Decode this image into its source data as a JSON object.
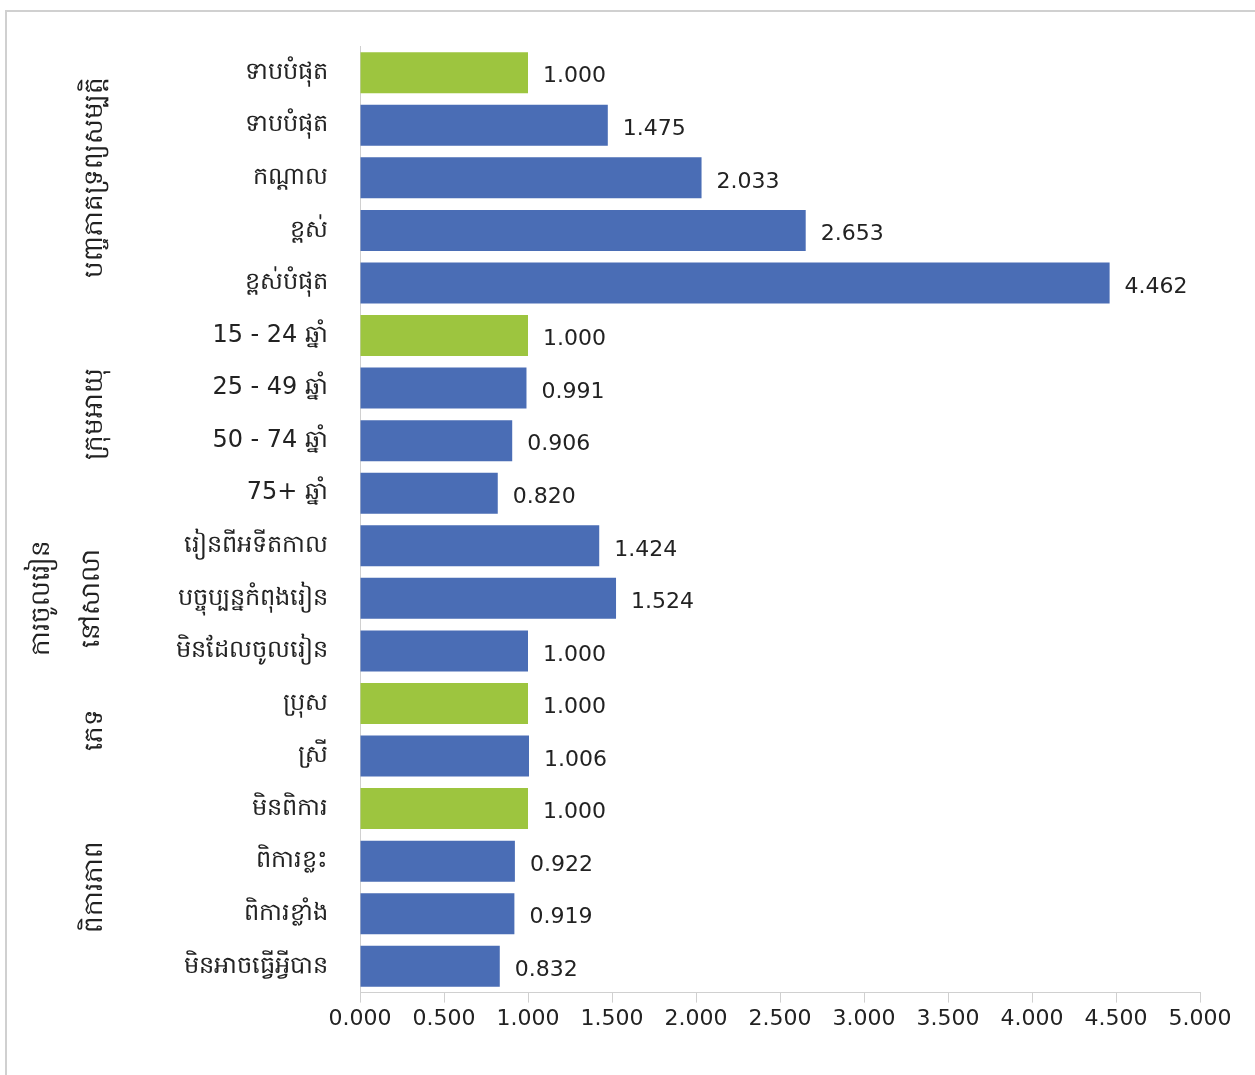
{
  "chart_data": {
    "type": "bar",
    "orientation": "horizontal",
    "categories": [
      "ទាបបំផុត",
      "ទាបបំផុត",
      "កណ្ដាល",
      "ខ្ពស់",
      "ខ្ពស់បំផុត",
      "15 - 24 ឆ្នាំ",
      "25 - 49 ឆ្នាំ",
      "50 - 74 ឆ្នាំ",
      "75+ ឆ្នាំ",
      "រៀនពីអទីតកាល",
      "បច្ចុប្បន្នកំពុងរៀន",
      "មិនដែលចូលរៀន",
      "ប្រុស",
      "ស្រី",
      "មិនពិការ",
      "ពិការខ្លះ",
      "ពិការខ្លាំង",
      "មិនអាចធ្វើអ្វីបាន"
    ],
    "values": [
      1.0,
      1.475,
      2.033,
      2.653,
      4.462,
      1.0,
      0.991,
      0.906,
      0.82,
      1.424,
      1.524,
      1.0,
      1.0,
      1.006,
      1.0,
      0.922,
      0.919,
      0.832
    ],
    "colors": [
      "#9dc53f",
      "#4a6db5",
      "#4a6db5",
      "#4a6db5",
      "#4a6db5",
      "#9dc53f",
      "#4a6db5",
      "#4a6db5",
      "#4a6db5",
      "#4a6db5",
      "#4a6db5",
      "#4a6db5",
      "#9dc53f",
      "#4a6db5",
      "#9dc53f",
      "#4a6db5",
      "#4a6db5",
      "#4a6db5"
    ],
    "value_labels": [
      "1.000",
      "1.475",
      "2.033",
      "2.653",
      "4.462",
      "1.000",
      "0.991",
      "0.906",
      "0.820",
      "1.424",
      "1.524",
      "1.000",
      "1.000",
      "1.006",
      "1.000",
      "0.922",
      "0.919",
      "0.832"
    ],
    "xlim": [
      0,
      5
    ],
    "xticks": [
      {
        "value": 0,
        "label": "0.000"
      },
      {
        "value": 0.5,
        "label": "0.500"
      },
      {
        "value": 1,
        "label": "1.000"
      },
      {
        "value": 1.5,
        "label": "1.500"
      },
      {
        "value": 2,
        "label": "2.000"
      },
      {
        "value": 2.5,
        "label": "2.500"
      },
      {
        "value": 3,
        "label": "3.000"
      },
      {
        "value": 3.5,
        "label": "3.500"
      },
      {
        "value": 4,
        "label": "4.000"
      },
      {
        "value": 4.5,
        "label": "4.500"
      },
      {
        "value": 5,
        "label": "5.000"
      }
    ],
    "annotations": [
      "បញ្ចភាគទ្រព្យសម្បត្តិ",
      "ក្រុមអាយុ",
      "ការចូលរៀន\nនៅសាលា",
      "ភេទ",
      "ពិការភាព"
    ],
    "grid": false,
    "legend": false
  }
}
